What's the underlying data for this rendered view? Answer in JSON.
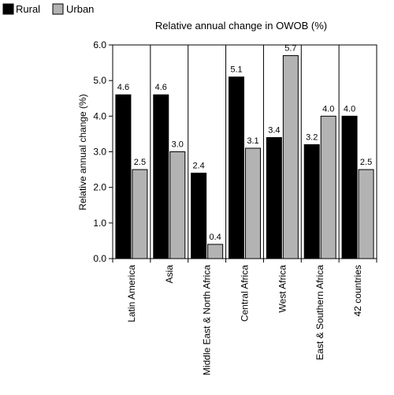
{
  "chart_data": {
    "type": "bar",
    "title": "Relative annual change in OWOB (%)",
    "xlabel": "",
    "ylabel": "Relative annual change (%)",
    "ylim": [
      0,
      6
    ],
    "yticks": [
      "0.0",
      "1.0",
      "2.0",
      "3.0",
      "4.0",
      "5.0",
      "6.0"
    ],
    "grid": false,
    "legend_position": "top-left",
    "categories": [
      "Latin America",
      "Asia",
      "Middle East & North Africa",
      "Central Africa",
      "West Africa",
      "East & Southern Africa",
      "42 countries"
    ],
    "series": [
      {
        "name": "Rural",
        "color": "#000000",
        "values": [
          4.6,
          4.6,
          2.4,
          5.1,
          3.4,
          3.2,
          4.0
        ],
        "labels": [
          "4.6",
          "4.6",
          "2.4",
          "5.1",
          "3.4",
          "3.2",
          "4.0"
        ]
      },
      {
        "name": "Urban",
        "color": "#b3b3b3",
        "values": [
          2.5,
          3.0,
          0.4,
          3.1,
          5.7,
          4.0,
          2.5
        ],
        "labels": [
          "2.5",
          "3.0",
          "0.4",
          "3.1",
          "5.7",
          "4.0",
          "2.5"
        ]
      }
    ]
  }
}
